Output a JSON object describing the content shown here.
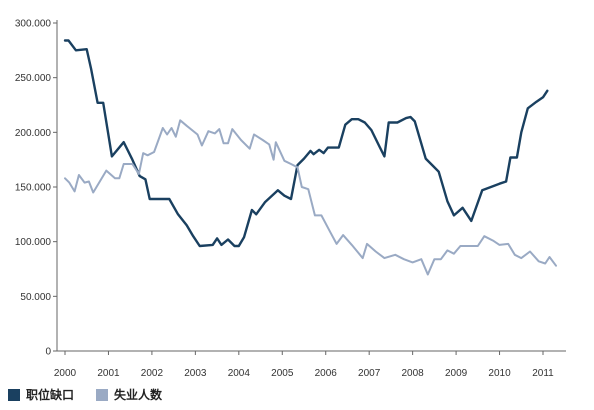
{
  "chart_data": {
    "type": "line",
    "title": "",
    "xlabel": "",
    "ylabel": "",
    "ylim": [
      0,
      300000
    ],
    "yticks": [
      0,
      50000,
      100000,
      150000,
      200000,
      250000,
      300000
    ],
    "ytick_labels": [
      "0",
      "50.000",
      "100.000",
      "150.000",
      "200.000",
      "250.000",
      "300.000"
    ],
    "xticks": [
      2000,
      2001,
      2002,
      2003,
      2004,
      2005,
      2006,
      2007,
      2008,
      2009,
      2010,
      2011
    ],
    "xtick_labels": [
      "2000",
      "2001",
      "2002",
      "2003",
      "2004",
      "2005",
      "2006",
      "2007",
      "2008",
      "2009",
      "2010",
      "2011"
    ],
    "xlim": [
      2000,
      2011.6
    ],
    "grid": false,
    "legend": "bottom-left",
    "series": [
      {
        "name": "职位缺口",
        "color": "#1a4060",
        "points": [
          [
            2000.0,
            284000
          ],
          [
            2000.08,
            284000
          ],
          [
            2000.25,
            275000
          ],
          [
            2000.5,
            276000
          ],
          [
            2000.6,
            258000
          ],
          [
            2000.75,
            227000
          ],
          [
            2000.88,
            227000
          ],
          [
            2001.08,
            178000
          ],
          [
            2001.35,
            191000
          ],
          [
            2001.55,
            175000
          ],
          [
            2001.72,
            160000
          ],
          [
            2001.85,
            157000
          ],
          [
            2001.95,
            139000
          ],
          [
            2002.1,
            139000
          ],
          [
            2002.4,
            139000
          ],
          [
            2002.6,
            125000
          ],
          [
            2002.8,
            115000
          ],
          [
            2002.95,
            105000
          ],
          [
            2003.1,
            96000
          ],
          [
            2003.4,
            97000
          ],
          [
            2003.5,
            103000
          ],
          [
            2003.6,
            97000
          ],
          [
            2003.75,
            102000
          ],
          [
            2003.9,
            96000
          ],
          [
            2004.0,
            96000
          ],
          [
            2004.12,
            104000
          ],
          [
            2004.3,
            129000
          ],
          [
            2004.4,
            125000
          ],
          [
            2004.6,
            136000
          ],
          [
            2004.9,
            147000
          ],
          [
            2005.05,
            142000
          ],
          [
            2005.2,
            139000
          ],
          [
            2005.35,
            170000
          ],
          [
            2005.5,
            176000
          ],
          [
            2005.65,
            183000
          ],
          [
            2005.72,
            180000
          ],
          [
            2005.85,
            184000
          ],
          [
            2005.95,
            181000
          ],
          [
            2006.05,
            186000
          ],
          [
            2006.3,
            186000
          ],
          [
            2006.45,
            207000
          ],
          [
            2006.6,
            212000
          ],
          [
            2006.75,
            212000
          ],
          [
            2006.9,
            209000
          ],
          [
            2007.05,
            202000
          ],
          [
            2007.25,
            186000
          ],
          [
            2007.35,
            178000
          ],
          [
            2007.45,
            209000
          ],
          [
            2007.65,
            209000
          ],
          [
            2007.85,
            213000
          ],
          [
            2007.95,
            214000
          ],
          [
            2008.05,
            210000
          ],
          [
            2008.3,
            176000
          ],
          [
            2008.45,
            170000
          ],
          [
            2008.6,
            164000
          ],
          [
            2008.8,
            137000
          ],
          [
            2008.95,
            124000
          ],
          [
            2009.15,
            131000
          ],
          [
            2009.35,
            119000
          ],
          [
            2009.6,
            147000
          ],
          [
            2009.8,
            150000
          ],
          [
            2010.0,
            153000
          ],
          [
            2010.15,
            155000
          ],
          [
            2010.25,
            177000
          ],
          [
            2010.4,
            177000
          ],
          [
            2010.5,
            200000
          ],
          [
            2010.65,
            222000
          ],
          [
            2010.85,
            228000
          ],
          [
            2011.0,
            232000
          ],
          [
            2011.1,
            238000
          ]
        ]
      },
      {
        "name": "失业人数",
        "color": "#9aaac4",
        "points": [
          [
            2000.0,
            158000
          ],
          [
            2000.1,
            154000
          ],
          [
            2000.22,
            146000
          ],
          [
            2000.32,
            161000
          ],
          [
            2000.45,
            154000
          ],
          [
            2000.55,
            155000
          ],
          [
            2000.65,
            145000
          ],
          [
            2000.8,
            155000
          ],
          [
            2000.95,
            165000
          ],
          [
            2001.15,
            158000
          ],
          [
            2001.25,
            158000
          ],
          [
            2001.35,
            171000
          ],
          [
            2001.55,
            171000
          ],
          [
            2001.7,
            162000
          ],
          [
            2001.8,
            181000
          ],
          [
            2001.9,
            179000
          ],
          [
            2002.05,
            182000
          ],
          [
            2002.25,
            204000
          ],
          [
            2002.35,
            198000
          ],
          [
            2002.45,
            204000
          ],
          [
            2002.55,
            196000
          ],
          [
            2002.65,
            211000
          ],
          [
            2002.8,
            206000
          ],
          [
            2003.05,
            198000
          ],
          [
            2003.15,
            188000
          ],
          [
            2003.3,
            201000
          ],
          [
            2003.45,
            199000
          ],
          [
            2003.55,
            203000
          ],
          [
            2003.65,
            190000
          ],
          [
            2003.75,
            190000
          ],
          [
            2003.85,
            203000
          ],
          [
            2004.05,
            193000
          ],
          [
            2004.25,
            185000
          ],
          [
            2004.35,
            198000
          ],
          [
            2004.55,
            193000
          ],
          [
            2004.7,
            189000
          ],
          [
            2004.8,
            175000
          ],
          [
            2004.85,
            191000
          ],
          [
            2005.05,
            174000
          ],
          [
            2005.2,
            171000
          ],
          [
            2005.35,
            168000
          ],
          [
            2005.45,
            150000
          ],
          [
            2005.6,
            148000
          ],
          [
            2005.75,
            124000
          ],
          [
            2005.9,
            124000
          ],
          [
            2006.1,
            109000
          ],
          [
            2006.25,
            98000
          ],
          [
            2006.4,
            106000
          ],
          [
            2006.6,
            97000
          ],
          [
            2006.85,
            85000
          ],
          [
            2006.95,
            98000
          ],
          [
            2007.15,
            91000
          ],
          [
            2007.35,
            85000
          ],
          [
            2007.6,
            88000
          ],
          [
            2007.8,
            84000
          ],
          [
            2008.0,
            81000
          ],
          [
            2008.2,
            84000
          ],
          [
            2008.35,
            70000
          ],
          [
            2008.5,
            84000
          ],
          [
            2008.65,
            84000
          ],
          [
            2008.8,
            92000
          ],
          [
            2008.95,
            89000
          ],
          [
            2009.1,
            96000
          ],
          [
            2009.5,
            96000
          ],
          [
            2009.65,
            105000
          ],
          [
            2009.85,
            101000
          ],
          [
            2010.0,
            97000
          ],
          [
            2010.2,
            98000
          ],
          [
            2010.35,
            88000
          ],
          [
            2010.5,
            85000
          ],
          [
            2010.7,
            91000
          ],
          [
            2010.9,
            82000
          ],
          [
            2011.05,
            80000
          ],
          [
            2011.15,
            86000
          ],
          [
            2011.3,
            78000
          ]
        ]
      }
    ]
  }
}
